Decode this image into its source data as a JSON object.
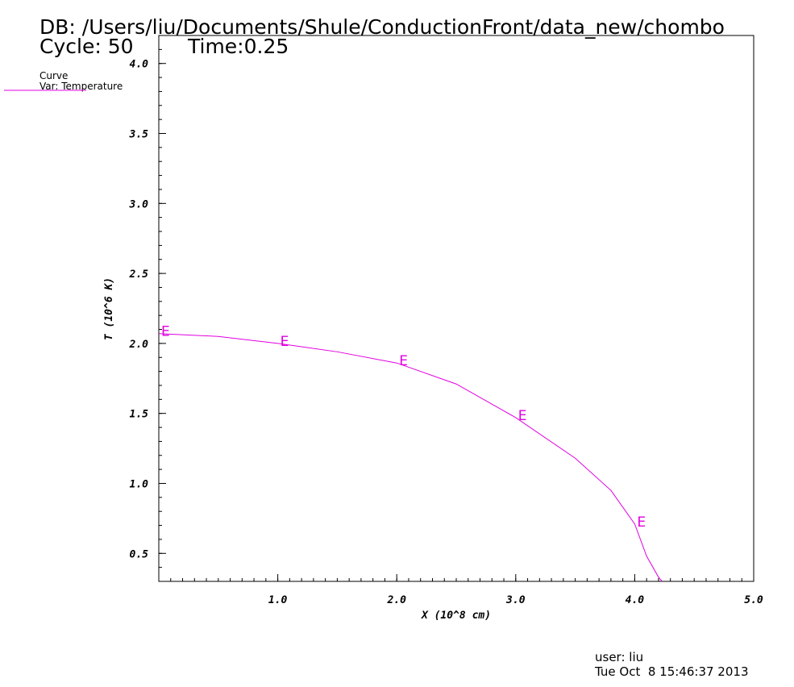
{
  "chart_data": {
    "type": "line",
    "title": "DB: /Users/liu/Documents/Shule/ConductionFront/data_new/chombo",
    "cycle": "Cycle: 50",
    "time": "Time:0.25",
    "legend_title": "Curve",
    "x_label": "X (10^8 cm)",
    "y_label": "T (10^6 K)",
    "point_label": "E",
    "user": "user: liu",
    "date": "Tue Oct  8 15:46:37 2013",
    "x": [
      0,
      0.5,
      1,
      1.5,
      2,
      2.5,
      3,
      3.5,
      3.8,
      4,
      4.1,
      4.2,
      4.23
    ],
    "series": [
      {
        "name": "Var: Temperature",
        "color": "#e000e0",
        "values": [
          2.07,
          2.05,
          2.0,
          1.94,
          1.86,
          1.71,
          1.47,
          1.18,
          0.95,
          0.71,
          0.48,
          0.33,
          0.3
        ]
      }
    ],
    "xlim": [
      0,
      5
    ],
    "ylim": [
      0.3,
      4.2
    ],
    "xticks": [
      {
        "value": 1,
        "label": "1.0"
      },
      {
        "value": 2,
        "label": "2.0"
      },
      {
        "value": 3,
        "label": "3.0"
      },
      {
        "value": 4,
        "label": "4.0"
      },
      {
        "value": 5,
        "label": "5.0"
      }
    ],
    "yticks": [
      {
        "value": 0.5,
        "label": "0.5"
      },
      {
        "value": 1,
        "label": "1.0"
      },
      {
        "value": 1.5,
        "label": "1.5"
      },
      {
        "value": 2,
        "label": "2.0"
      },
      {
        "value": 2.5,
        "label": "2.5"
      },
      {
        "value": 3,
        "label": "3.0"
      },
      {
        "value": 3.5,
        "label": "3.5"
      },
      {
        "value": 4,
        "label": "4.0"
      }
    ]
  }
}
